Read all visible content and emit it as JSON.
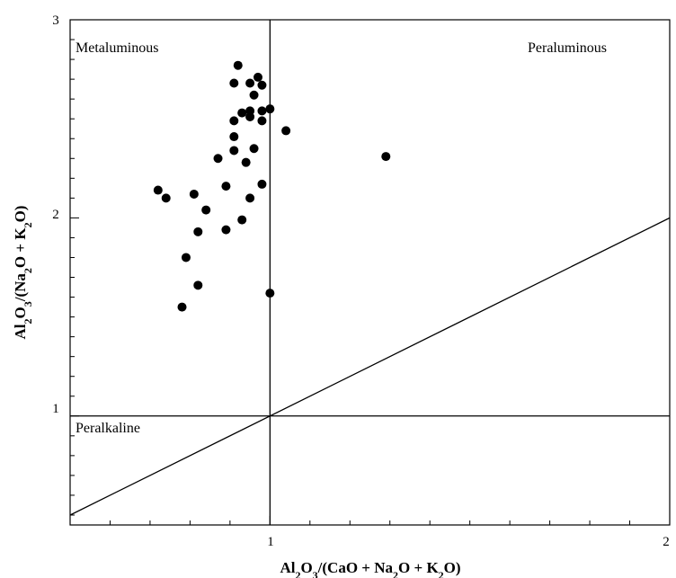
{
  "chart_data": {
    "type": "scatter",
    "title": "",
    "xlabel": "Al2O3/(CaO + Na2O + K2O)",
    "ylabel": "Al2O3/(Na2O + K2O)",
    "xlabel_parts": [
      {
        "t": "Al",
        "sub": false
      },
      {
        "t": "2",
        "sub": true
      },
      {
        "t": "O",
        "sub": false
      },
      {
        "t": "3",
        "sub": true
      },
      {
        "t": "/(CaO + Na",
        "sub": false
      },
      {
        "t": "2",
        "sub": true
      },
      {
        "t": "O + K",
        "sub": false
      },
      {
        "t": "2",
        "sub": true
      },
      {
        "t": "O)",
        "sub": false
      }
    ],
    "ylabel_parts": [
      {
        "t": "Al",
        "sub": false
      },
      {
        "t": "2",
        "sub": true
      },
      {
        "t": "O",
        "sub": false
      },
      {
        "t": "3",
        "sub": true
      },
      {
        "t": "/(Na",
        "sub": false
      },
      {
        "t": "2",
        "sub": true
      },
      {
        "t": "O + K",
        "sub": false
      },
      {
        "t": "2",
        "sub": true
      },
      {
        "t": "O)",
        "sub": false
      }
    ],
    "xlim": [
      0.5,
      2.0
    ],
    "ylim": [
      0.45,
      3.0
    ],
    "x_ticks_labeled": [
      1,
      2
    ],
    "x_tick_labels": [
      "1",
      "2"
    ],
    "x_minor_ticks": [
      0.6,
      0.7,
      0.8,
      0.9,
      1.1,
      1.2,
      1.3,
      1.4,
      1.5,
      1.6,
      1.7,
      1.8,
      1.9
    ],
    "y_ticks_labeled": [
      1,
      2,
      3
    ],
    "y_tick_labels": [
      "1",
      "2",
      "3"
    ],
    "y_minor_ticks": [
      0.5,
      0.6,
      0.7,
      0.8,
      0.9,
      1.1,
      1.2,
      1.3,
      1.4,
      1.5,
      1.6,
      1.7,
      1.8,
      1.9,
      2.1,
      2.2,
      2.3,
      2.4,
      2.5,
      2.6,
      2.7,
      2.8,
      2.9
    ],
    "grid": false,
    "reference_lines": [
      {
        "type": "vertical",
        "x": 1.0
      },
      {
        "type": "horizontal",
        "y": 1.0
      },
      {
        "type": "diagonal",
        "x1": 0.5,
        "y1": 0.5,
        "x2": 2.0,
        "y2": 2.0
      }
    ],
    "regions": [
      {
        "label": "Metaluminous",
        "position": "top-left"
      },
      {
        "label": "Peraluminous",
        "position": "top-right"
      },
      {
        "label": "Peralkaline",
        "position": "bottom-left"
      }
    ],
    "points": [
      {
        "x": 0.92,
        "y": 2.77
      },
      {
        "x": 0.97,
        "y": 2.71
      },
      {
        "x": 0.91,
        "y": 2.68
      },
      {
        "x": 0.95,
        "y": 2.68
      },
      {
        "x": 0.98,
        "y": 2.67
      },
      {
        "x": 0.96,
        "y": 2.62
      },
      {
        "x": 1.0,
        "y": 2.55
      },
      {
        "x": 0.98,
        "y": 2.54
      },
      {
        "x": 0.95,
        "y": 2.54
      },
      {
        "x": 0.93,
        "y": 2.53
      },
      {
        "x": 0.95,
        "y": 2.51
      },
      {
        "x": 0.91,
        "y": 2.49
      },
      {
        "x": 0.98,
        "y": 2.49
      },
      {
        "x": 1.04,
        "y": 2.44
      },
      {
        "x": 0.91,
        "y": 2.41
      },
      {
        "x": 0.91,
        "y": 2.34
      },
      {
        "x": 0.96,
        "y": 2.35
      },
      {
        "x": 0.87,
        "y": 2.3
      },
      {
        "x": 0.94,
        "y": 2.28
      },
      {
        "x": 1.29,
        "y": 2.31
      },
      {
        "x": 0.98,
        "y": 2.17
      },
      {
        "x": 0.89,
        "y": 2.16
      },
      {
        "x": 0.72,
        "y": 2.14
      },
      {
        "x": 0.74,
        "y": 2.1
      },
      {
        "x": 0.81,
        "y": 2.12
      },
      {
        "x": 0.95,
        "y": 2.1
      },
      {
        "x": 0.84,
        "y": 2.04
      },
      {
        "x": 0.93,
        "y": 1.99
      },
      {
        "x": 0.82,
        "y": 1.93
      },
      {
        "x": 0.89,
        "y": 1.94
      },
      {
        "x": 0.79,
        "y": 1.8
      },
      {
        "x": 0.82,
        "y": 1.66
      },
      {
        "x": 0.78,
        "y": 1.55
      },
      {
        "x": 1.0,
        "y": 1.62
      }
    ]
  }
}
